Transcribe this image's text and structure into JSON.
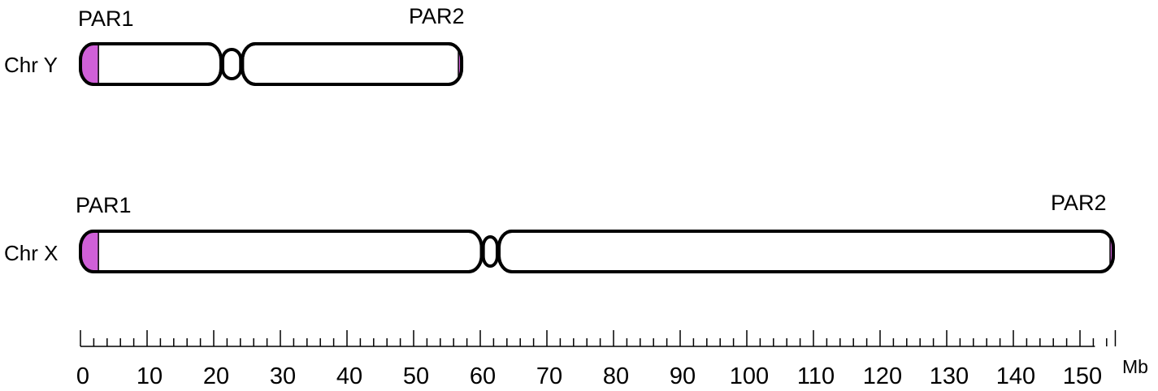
{
  "chart_data": {
    "type": "diagram",
    "axis": {
      "unit": "Mb",
      "min": 0,
      "max": 155,
      "major_step": 10,
      "minor_step": 2,
      "tick_labels": [
        "0",
        "10",
        "20",
        "30",
        "40",
        "50",
        "60",
        "70",
        "80",
        "90",
        "100",
        "110",
        "120",
        "130",
        "140",
        "150"
      ]
    },
    "par_color": "#d060d8",
    "chromosomes": [
      {
        "id": "y",
        "label": "Chr Y",
        "length_mb": 57.2,
        "centromere_mb": [
          21.1,
          24.3
        ],
        "pars": [
          {
            "name": "PAR1",
            "start_mb": 0,
            "end_mb": 2.7
          },
          {
            "name": "PAR2",
            "start_mb": 56.9,
            "end_mb": 57.2
          }
        ]
      },
      {
        "id": "x",
        "label": "Chr X",
        "length_mb": 155.0,
        "centromere_mb": [
          60.2,
          62.8
        ],
        "pars": [
          {
            "name": "PAR1",
            "start_mb": 0,
            "end_mb": 2.7
          },
          {
            "name": "PAR2",
            "start_mb": 154.9,
            "end_mb": 155.0
          }
        ]
      }
    ]
  }
}
